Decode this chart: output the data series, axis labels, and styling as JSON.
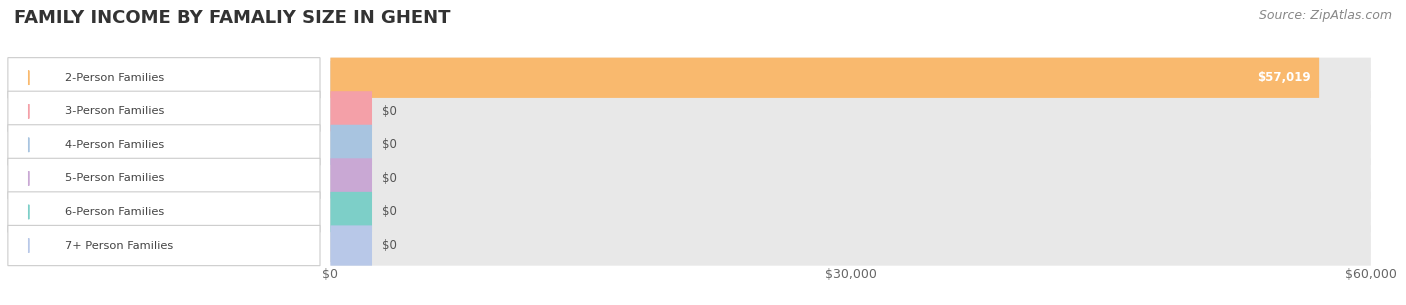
{
  "title": "FAMILY INCOME BY FAMALIY SIZE IN GHENT",
  "source": "Source: ZipAtlas.com",
  "categories": [
    "2-Person Families",
    "3-Person Families",
    "4-Person Families",
    "5-Person Families",
    "6-Person Families",
    "7+ Person Families"
  ],
  "values": [
    57019,
    0,
    0,
    0,
    0,
    0
  ],
  "bar_colors": [
    "#F9B96E",
    "#F4A0A8",
    "#A8C4E0",
    "#C9A8D4",
    "#7DCFC8",
    "#B8C8E8"
  ],
  "xlim": [
    0,
    60000
  ],
  "xticks": [
    0,
    30000,
    60000
  ],
  "xtick_labels": [
    "$0",
    "$30,000",
    "$60,000"
  ],
  "title_fontsize": 13,
  "source_fontsize": 9,
  "background_color": "#ffffff",
  "bar_bg_color": "#e8e8e8",
  "value_label": "$57,019",
  "zero_label": "$0"
}
